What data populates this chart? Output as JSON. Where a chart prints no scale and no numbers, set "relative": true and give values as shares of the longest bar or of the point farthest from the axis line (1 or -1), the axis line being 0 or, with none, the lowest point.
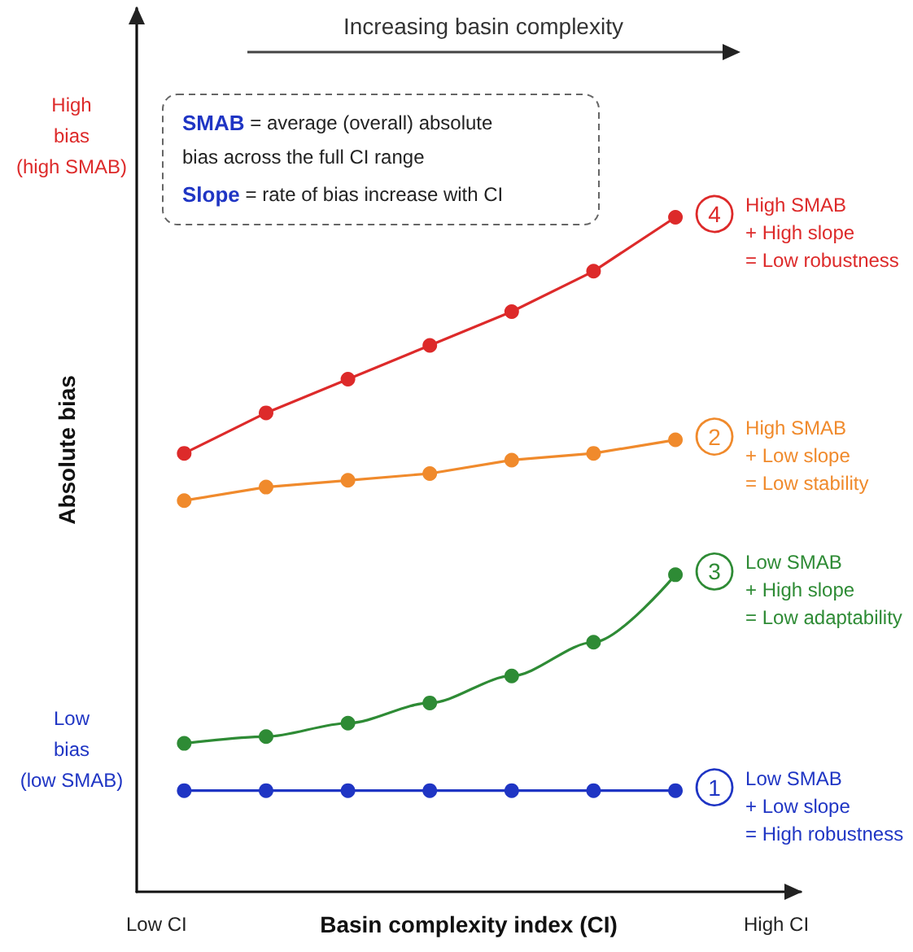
{
  "chart_data": {
    "type": "line",
    "relative": true,
    "xlabel": "Basin complexity index (CI)",
    "ylabel": "Absolute bias",
    "categories": [
      null,
      null,
      null,
      null,
      null,
      null,
      null
    ],
    "marker": "circle",
    "line_style": "solid",
    "legend": "right",
    "grid": false,
    "series": [
      {
        "name": "High SMAB\n+ High slope\n= Low robustness",
        "color": "#dd2a2a",
        "values": [
          0.65,
          0.71,
          0.76,
          0.81,
          0.86,
          0.92,
          1.0
        ]
      },
      {
        "name": "High SMAB\n+ Low slope\n= Low stability",
        "color": "#f08a2c",
        "values": [
          0.58,
          0.6,
          0.61,
          0.62,
          0.64,
          0.65,
          0.67
        ]
      },
      {
        "name": "Low SMAB\n+ High slope\n= Low adaptability",
        "color": "#2e8b35",
        "values": [
          0.22,
          0.23,
          0.25,
          0.28,
          0.32,
          0.37,
          0.47
        ]
      },
      {
        "name": "Low SMAB\n+ Low slope\n= High robustness",
        "color": "#1f35c4",
        "values": [
          0.15,
          0.15,
          0.15,
          0.15,
          0.15,
          0.15,
          0.15
        ]
      }
    ],
    "annotations": [
      "4",
      "2",
      "3",
      "1",
      "Increasing basin complexity",
      "SMAB = average (overall) absolute bias across the full CI range",
      "Slope = rate of bias increase with CI",
      "High bias (high SMAB)",
      "Low bias (low SMAB)",
      "Low CI",
      "High CI"
    ]
  }
}
